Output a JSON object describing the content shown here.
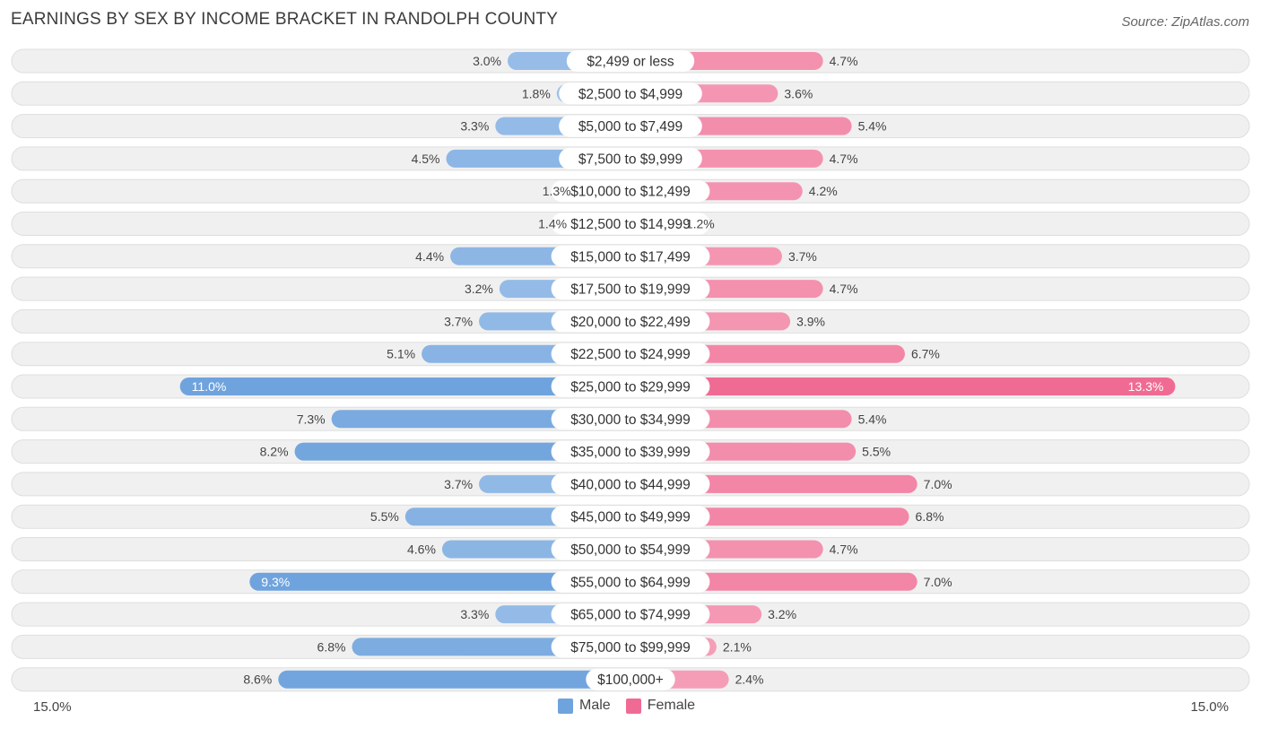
{
  "chart_data": {
    "type": "bar",
    "orientation": "horizontal-diverging",
    "title": "EARNINGS BY SEX BY INCOME BRACKET IN RANDOLPH COUNTY",
    "source": "Source: ZipAtlas.com",
    "axis_max": 15.0,
    "axis_left_label": "15.0%",
    "axis_right_label": "15.0%",
    "categories": [
      "$2,499 or less",
      "$2,500 to $4,999",
      "$5,000 to $7,499",
      "$7,500 to $9,999",
      "$10,000 to $12,499",
      "$12,500 to $14,999",
      "$15,000 to $17,499",
      "$17,500 to $19,999",
      "$20,000 to $22,499",
      "$22,500 to $24,999",
      "$25,000 to $29,999",
      "$30,000 to $34,999",
      "$35,000 to $39,999",
      "$40,000 to $44,999",
      "$45,000 to $49,999",
      "$50,000 to $54,999",
      "$55,000 to $64,999",
      "$65,000 to $74,999",
      "$75,000 to $99,999",
      "$100,000+"
    ],
    "series": [
      {
        "name": "Male",
        "color": "#6fa3dd",
        "light_color": "#a9c9ec",
        "values": [
          3.0,
          1.8,
          3.3,
          4.5,
          1.3,
          1.4,
          4.4,
          3.2,
          3.7,
          5.1,
          11.0,
          7.3,
          8.2,
          3.7,
          5.5,
          4.6,
          9.3,
          3.3,
          6.8,
          8.6
        ],
        "labels": [
          "3.0%",
          "1.8%",
          "3.3%",
          "4.5%",
          "1.3%",
          "1.4%",
          "4.4%",
          "3.2%",
          "3.7%",
          "5.1%",
          "11.0%",
          "7.3%",
          "8.2%",
          "3.7%",
          "5.5%",
          "4.6%",
          "9.3%",
          "3.3%",
          "6.8%",
          "8.6%"
        ]
      },
      {
        "name": "Female",
        "color": "#f06b94",
        "light_color": "#f6a9c0",
        "values": [
          4.7,
          3.6,
          5.4,
          4.7,
          4.2,
          1.2,
          3.7,
          4.7,
          3.9,
          6.7,
          13.3,
          5.4,
          5.5,
          7.0,
          6.8,
          4.7,
          7.0,
          3.2,
          2.1,
          2.4
        ],
        "labels": [
          "4.7%",
          "3.6%",
          "5.4%",
          "4.7%",
          "4.2%",
          "1.2%",
          "3.7%",
          "4.7%",
          "3.9%",
          "6.7%",
          "13.3%",
          "5.4%",
          "5.5%",
          "7.0%",
          "6.8%",
          "4.7%",
          "7.0%",
          "3.2%",
          "2.1%",
          "2.4%"
        ]
      }
    ],
    "legend": [
      {
        "name": "Male",
        "color": "#6fa3dd"
      },
      {
        "name": "Female",
        "color": "#f06b94"
      }
    ]
  }
}
